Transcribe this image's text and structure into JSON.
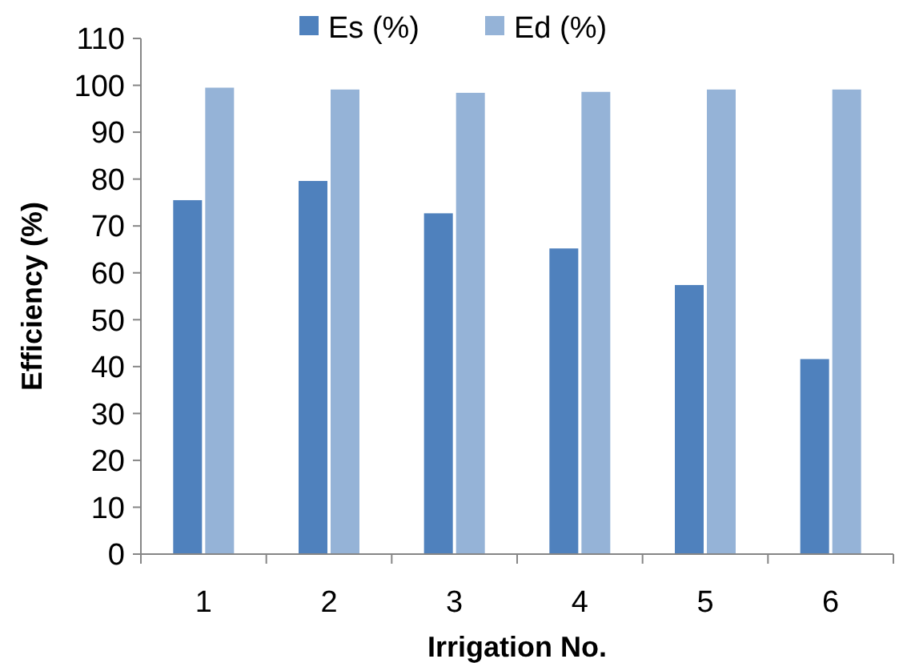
{
  "chart_data": {
    "type": "bar",
    "xlabel": "Irrigation No.",
    "ylabel": "Efficiency (%)",
    "categories": [
      "1",
      "2",
      "3",
      "4",
      "5",
      "6"
    ],
    "series": [
      {
        "name": "Es (%)",
        "color": "#4f81bd",
        "values": [
          75.5,
          79.6,
          72.7,
          65.2,
          57.4,
          41.6
        ]
      },
      {
        "name": "Ed (%)",
        "color": "#95b3d7",
        "values": [
          99.5,
          99.1,
          98.4,
          98.6,
          99.1,
          99.1
        ]
      }
    ],
    "ylim": [
      0,
      110
    ],
    "yticks": [
      0,
      10,
      20,
      30,
      40,
      50,
      60,
      70,
      80,
      90,
      100,
      110
    ],
    "grid": false,
    "legend": "top"
  }
}
